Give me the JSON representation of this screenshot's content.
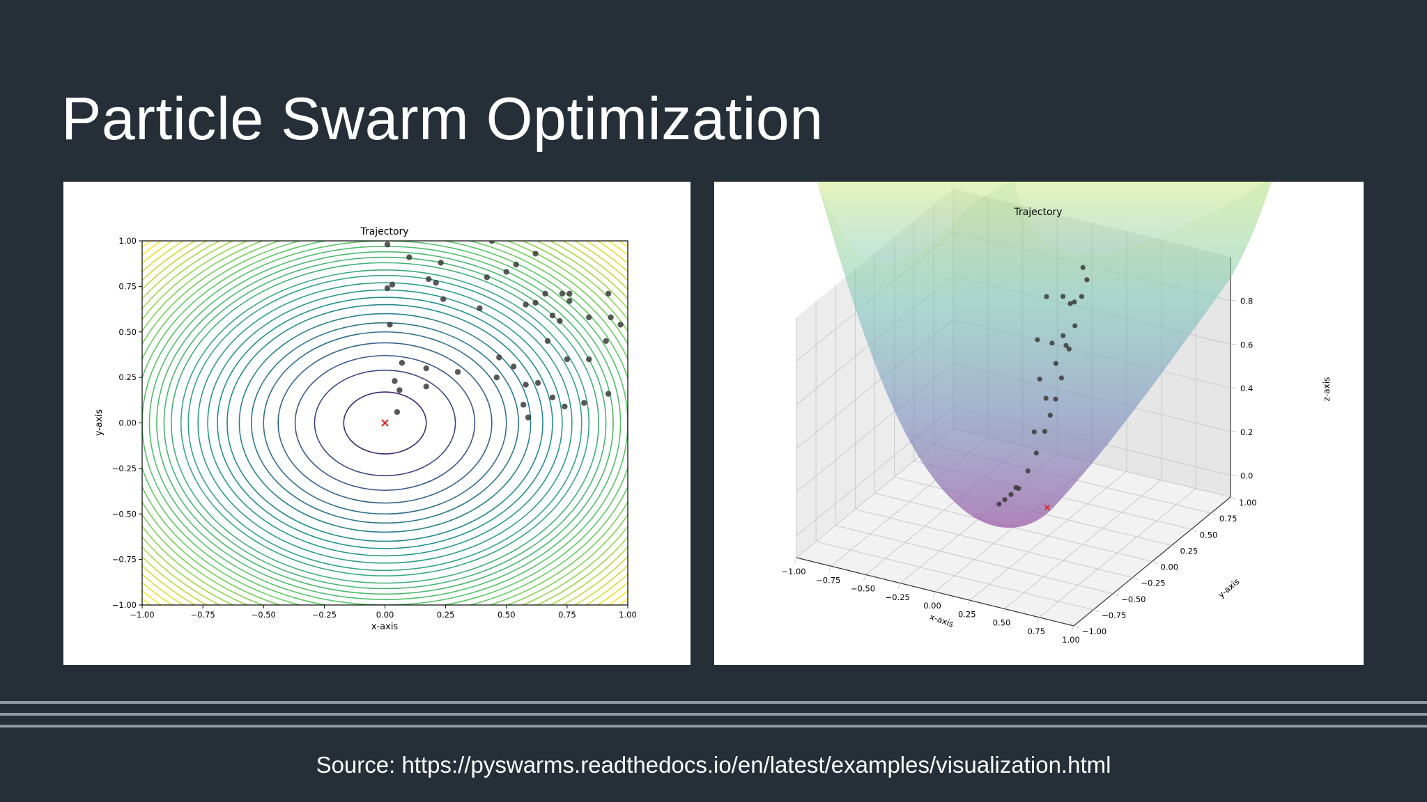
{
  "slide": {
    "title": "Particle Swarm Optimization",
    "source": "Source: https://pyswarms.readthedocs.io/en/latest/examples/visualization.html"
  },
  "colors": {
    "background": "#262f37",
    "rule": "#8d98a1",
    "particle": "#3b3b3b",
    "optimum_marker": "#d62728"
  },
  "chart_data": [
    {
      "type": "scatter",
      "title": "Trajectory",
      "xlabel": "x-axis",
      "ylabel": "y-axis",
      "xlim": [
        -1,
        1
      ],
      "ylim": [
        -1,
        1
      ],
      "xticks": [
        "−1.00",
        "−0.75",
        "−0.50",
        "−0.25",
        "0.00",
        "0.25",
        "0.50",
        "0.75",
        "1.00"
      ],
      "yticks": [
        "−1.00",
        "−0.75",
        "−0.50",
        "−0.25",
        "0.00",
        "0.25",
        "0.50",
        "0.75",
        "1.00"
      ],
      "background": "contour of sphere function x² + y² (viridis)",
      "contour_radii": [
        0.17,
        0.29,
        0.37,
        0.44,
        0.5,
        0.55,
        0.6,
        0.65,
        0.69,
        0.73,
        0.77,
        0.81,
        0.84,
        0.88,
        0.91,
        0.94,
        0.97,
        1.0,
        1.03,
        1.06,
        1.09,
        1.12,
        1.15,
        1.18,
        1.21,
        1.24,
        1.27,
        1.3,
        1.33,
        1.36,
        1.39
      ],
      "optimum": {
        "x": 0.0,
        "y": 0.0,
        "marker": "x"
      },
      "points": [
        {
          "x": 0.01,
          "y": 0.98
        },
        {
          "x": 0.1,
          "y": 0.91
        },
        {
          "x": 0.23,
          "y": 0.88
        },
        {
          "x": 0.44,
          "y": 1.0
        },
        {
          "x": 0.62,
          "y": 0.93
        },
        {
          "x": 0.18,
          "y": 0.79
        },
        {
          "x": 0.21,
          "y": 0.77
        },
        {
          "x": 0.42,
          "y": 0.8
        },
        {
          "x": 0.5,
          "y": 0.83
        },
        {
          "x": 0.54,
          "y": 0.87
        },
        {
          "x": 0.01,
          "y": 0.74
        },
        {
          "x": 0.03,
          "y": 0.76
        },
        {
          "x": 0.24,
          "y": 0.68
        },
        {
          "x": 0.39,
          "y": 0.63
        },
        {
          "x": 0.58,
          "y": 0.65
        },
        {
          "x": 0.62,
          "y": 0.66
        },
        {
          "x": 0.66,
          "y": 0.71
        },
        {
          "x": 0.73,
          "y": 0.71
        },
        {
          "x": 0.76,
          "y": 0.71
        },
        {
          "x": 0.76,
          "y": 0.67
        },
        {
          "x": 0.92,
          "y": 0.71
        },
        {
          "x": 0.69,
          "y": 0.59
        },
        {
          "x": 0.72,
          "y": 0.56
        },
        {
          "x": 0.84,
          "y": 0.58
        },
        {
          "x": 0.93,
          "y": 0.58
        },
        {
          "x": 0.97,
          "y": 0.54
        },
        {
          "x": 0.02,
          "y": 0.54
        },
        {
          "x": 0.67,
          "y": 0.45
        },
        {
          "x": 0.91,
          "y": 0.45
        },
        {
          "x": 0.47,
          "y": 0.36
        },
        {
          "x": 0.75,
          "y": 0.35
        },
        {
          "x": 0.84,
          "y": 0.35
        },
        {
          "x": 0.07,
          "y": 0.33
        },
        {
          "x": 0.17,
          "y": 0.3
        },
        {
          "x": 0.3,
          "y": 0.28
        },
        {
          "x": 0.53,
          "y": 0.31
        },
        {
          "x": 0.46,
          "y": 0.25
        },
        {
          "x": 0.04,
          "y": 0.23
        },
        {
          "x": 0.06,
          "y": 0.18
        },
        {
          "x": 0.17,
          "y": 0.2
        },
        {
          "x": 0.58,
          "y": 0.21
        },
        {
          "x": 0.63,
          "y": 0.22
        },
        {
          "x": 0.69,
          "y": 0.14
        },
        {
          "x": 0.57,
          "y": 0.1
        },
        {
          "x": 0.74,
          "y": 0.09
        },
        {
          "x": 0.82,
          "y": 0.11
        },
        {
          "x": 0.92,
          "y": 0.16
        },
        {
          "x": 0.59,
          "y": 0.03
        },
        {
          "x": 0.05,
          "y": 0.06
        }
      ]
    },
    {
      "type": "scatter",
      "title": "Trajectory",
      "xlabel": "x-axis",
      "ylabel": "y-axis",
      "zlabel": "z-axis",
      "xlim": [
        -1,
        1
      ],
      "ylim": [
        -1,
        1
      ],
      "zlim": [
        -0.1,
        1.0
      ],
      "xticks": [
        "−1.00",
        "−0.75",
        "−0.50",
        "−0.25",
        "0.00",
        "0.25",
        "0.50",
        "0.75",
        "1.00"
      ],
      "yticks": [
        "−1.00",
        "−0.75",
        "−0.50",
        "−0.25",
        "0.00",
        "0.25",
        "0.50",
        "0.75",
        "1.00"
      ],
      "zticks": [
        "0.0",
        "0.2",
        "0.4",
        "0.6",
        "0.8"
      ],
      "surface": "sphere function z = x² + y² (viridis, translucent)",
      "optimum": {
        "x": 0.0,
        "y": 0.0,
        "z": 0.0,
        "marker": "x"
      },
      "points": [
        {
          "x": 0.1,
          "y": 0.05,
          "z": 0.01
        },
        {
          "x": 0.15,
          "y": 0.08,
          "z": 0.03
        },
        {
          "x": 0.2,
          "y": 0.12,
          "z": 0.05
        },
        {
          "x": 0.24,
          "y": 0.15,
          "z": 0.08
        },
        {
          "x": 0.3,
          "y": 0.1,
          "z": 0.1
        },
        {
          "x": 0.35,
          "y": 0.2,
          "z": 0.16
        },
        {
          "x": 0.42,
          "y": 0.25,
          "z": 0.24
        },
        {
          "x": 0.48,
          "y": 0.32,
          "z": 0.33
        },
        {
          "x": 0.52,
          "y": 0.36,
          "z": 0.4
        },
        {
          "x": 0.56,
          "y": 0.4,
          "z": 0.47
        },
        {
          "x": 0.6,
          "y": 0.45,
          "z": 0.56
        },
        {
          "x": 0.66,
          "y": 0.5,
          "z": 0.69
        },
        {
          "x": 0.7,
          "y": 0.55,
          "z": 0.79
        },
        {
          "x": 0.75,
          "y": 0.6,
          "z": 0.92
        },
        {
          "x": 0.55,
          "y": 0.72,
          "z": 0.82
        },
        {
          "x": 0.62,
          "y": 0.68,
          "z": 0.85
        },
        {
          "x": 0.45,
          "y": 0.6,
          "z": 0.56
        },
        {
          "x": 0.5,
          "y": 0.66,
          "z": 0.68
        },
        {
          "x": 0.38,
          "y": 0.52,
          "z": 0.41
        },
        {
          "x": 0.3,
          "y": 0.42,
          "z": 0.27
        },
        {
          "x": 0.68,
          "y": 0.75,
          "z": 1.0
        },
        {
          "x": 0.8,
          "y": 0.62,
          "z": 1.0
        },
        {
          "x": 0.25,
          "y": 0.62,
          "z": 0.45
        },
        {
          "x": 0.35,
          "y": 0.7,
          "z": 0.61
        },
        {
          "x": 0.15,
          "y": 0.75,
          "z": 0.58
        },
        {
          "x": 0.2,
          "y": 0.85,
          "z": 0.76
        },
        {
          "x": 0.42,
          "y": 0.8,
          "z": 0.81
        },
        {
          "x": 0.58,
          "y": 0.58,
          "z": 0.67
        }
      ]
    }
  ]
}
